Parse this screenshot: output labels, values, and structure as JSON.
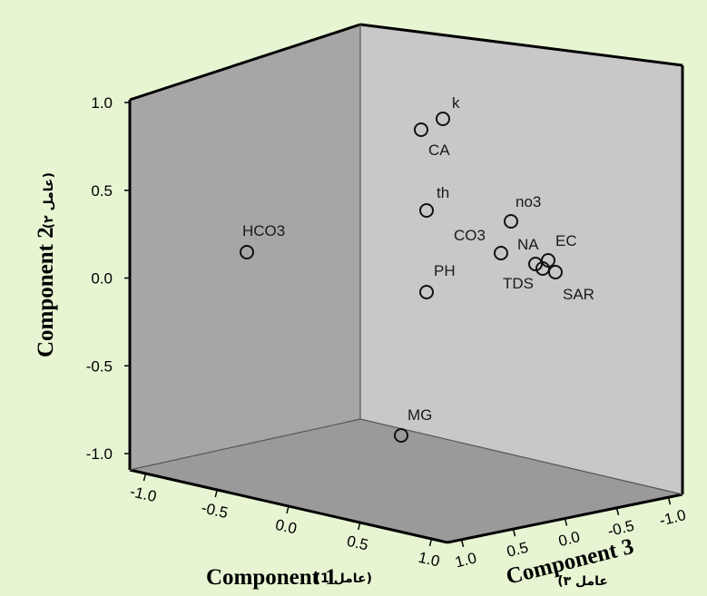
{
  "chart_data": {
    "type": "scatter",
    "title": "",
    "axes": {
      "x": {
        "label": "Component 1",
        "label_arabic": "(عامل 1)",
        "range": [
          -1.0,
          1.0
        ],
        "ticks": [
          "-1.0",
          "-0.5",
          "0.0",
          "0.5",
          "1.0"
        ]
      },
      "y": {
        "label": "Component 2",
        "label_arabic": "(عامل ٢)",
        "range": [
          -1.0,
          1.0
        ],
        "ticks": [
          "1.0",
          "0.5",
          "0.0",
          "-0.5",
          "-1.0"
        ]
      },
      "z": {
        "label": "Component 3",
        "label_arabic": "عامل ٣)",
        "range": [
          -1.0,
          1.0
        ],
        "ticks": [
          "1.0",
          "0.5",
          "0.0",
          "-0.5",
          "-1.0"
        ]
      }
    },
    "points": [
      {
        "label": "k",
        "x": 0.5,
        "y": 0.88
      },
      {
        "label": "CA",
        "x": 0.5,
        "y": 0.82
      },
      {
        "label": "th",
        "x": 0.5,
        "y": 0.37
      },
      {
        "label": "no3",
        "x": 0.85,
        "y": 0.3
      },
      {
        "label": "HCO3",
        "x": -0.8,
        "y": 0.13
      },
      {
        "label": "CO3",
        "x": 0.75,
        "y": 0.12
      },
      {
        "label": "NA",
        "x": 0.85,
        "y": 0.07
      },
      {
        "label": "EC",
        "x": 0.9,
        "y": 0.08
      },
      {
        "label": "TDS",
        "x": 0.9,
        "y": 0.07
      },
      {
        "label": "SAR",
        "x": 0.95,
        "y": 0.01
      },
      {
        "label": "PH",
        "x": 0.5,
        "y": -0.1
      },
      {
        "label": "MG",
        "x": 0.4,
        "y": -0.91
      }
    ],
    "grid": false,
    "legend": "none"
  }
}
